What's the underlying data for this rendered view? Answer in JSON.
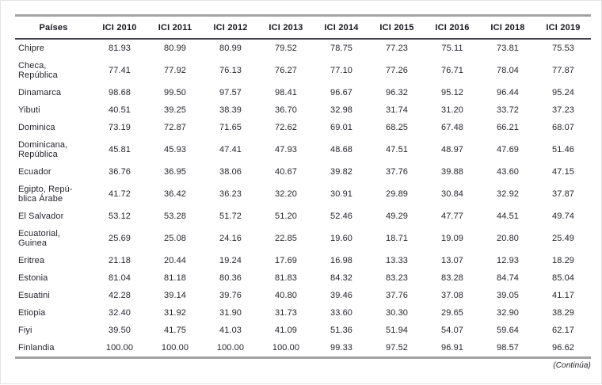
{
  "page": {
    "footer_note": "(Continúa)"
  },
  "colors": {
    "rule_outer_gray": "#a2a2a2",
    "rule_header_dark": "#44444e",
    "header_text": "#16161e",
    "cell_text": "#26262e"
  },
  "table": {
    "columns": [
      "Países",
      "ICI 2010",
      "ICI 2011",
      "ICI 2012",
      "ICI 2013",
      "ICI 2014",
      "ICI 2015",
      "ICI 2016",
      "ICI 2018",
      "ICI 2019"
    ],
    "rows": [
      {
        "country": "Chipre",
        "values": [
          "81.93",
          "80.99",
          "80.99",
          "79.52",
          "78.75",
          "77.23",
          "75.11",
          "73.81",
          "75.53"
        ]
      },
      {
        "country": "Checa,\nRepública",
        "values": [
          "77.41",
          "77.92",
          "76.13",
          "76.27",
          "77.10",
          "77.26",
          "76.71",
          "78.04",
          "77.87"
        ]
      },
      {
        "country": "Dinamarca",
        "values": [
          "98.68",
          "99.50",
          "97.57",
          "98.41",
          "96.67",
          "96.32",
          "95.12",
          "96.44",
          "95.24"
        ]
      },
      {
        "country": "Yibuti",
        "values": [
          "40.51",
          "39.25",
          "38.39",
          "36.70",
          "32.98",
          "31.74",
          "31.20",
          "33.72",
          "37.23"
        ]
      },
      {
        "country": "Dominica",
        "values": [
          "73.19",
          "72.87",
          "71.65",
          "72.62",
          "69.01",
          "68.25",
          "67.48",
          "66.21",
          "68.07"
        ]
      },
      {
        "country": "Dominicana,\nRepública",
        "values": [
          "45.81",
          "45.93",
          "47.41",
          "47.93",
          "48.68",
          "47.51",
          "48.97",
          "47.69",
          "51.46"
        ]
      },
      {
        "country": "Ecuador",
        "values": [
          "36.76",
          "36.95",
          "38.06",
          "40.67",
          "39.82",
          "37.76",
          "39.88",
          "43.60",
          "47.15"
        ]
      },
      {
        "country": "Egipto, Repú-\nblica Árabe",
        "values": [
          "41.72",
          "36.42",
          "36.23",
          "32.20",
          "30.91",
          "29.89",
          "30.84",
          "32.92",
          "37.87"
        ]
      },
      {
        "country": "El Salvador",
        "values": [
          "53.12",
          "53.28",
          "51.72",
          "51.20",
          "52.46",
          "49.29",
          "47.77",
          "44.51",
          "49.74"
        ]
      },
      {
        "country": "Ecuatorial,\nGuinea",
        "values": [
          "25.69",
          "25.08",
          "24.16",
          "22.85",
          "19.60",
          "18.71",
          "19.09",
          "20.80",
          "25.49"
        ]
      },
      {
        "country": "Eritrea",
        "values": [
          "21.18",
          "20.44",
          "19.24",
          "17.69",
          "16.98",
          "13.33",
          "13.07",
          "12.93",
          "18.29"
        ]
      },
      {
        "country": "Estonia",
        "values": [
          "81.04",
          "81.18",
          "80.36",
          "81.83",
          "84.32",
          "83.23",
          "83.28",
          "84.74",
          "85.04"
        ]
      },
      {
        "country": "Esuatini",
        "values": [
          "42.28",
          "39.14",
          "39.76",
          "40.80",
          "39.46",
          "37.76",
          "37.08",
          "39.05",
          "41.17"
        ]
      },
      {
        "country": "Etiopia",
        "values": [
          "32.40",
          "31.92",
          "31.90",
          "31.73",
          "33.60",
          "30.30",
          "29.65",
          "32.90",
          "38.29"
        ]
      },
      {
        "country": "Fiyi",
        "values": [
          "39.50",
          "41.75",
          "41.03",
          "41.09",
          "51.36",
          "51.94",
          "54.07",
          "59.64",
          "62.17"
        ]
      },
      {
        "country": "Finlandia",
        "values": [
          "100.00",
          "100.00",
          "100.00",
          "100.00",
          "99.33",
          "97.52",
          "96.91",
          "98.57",
          "96.62"
        ]
      }
    ]
  }
}
